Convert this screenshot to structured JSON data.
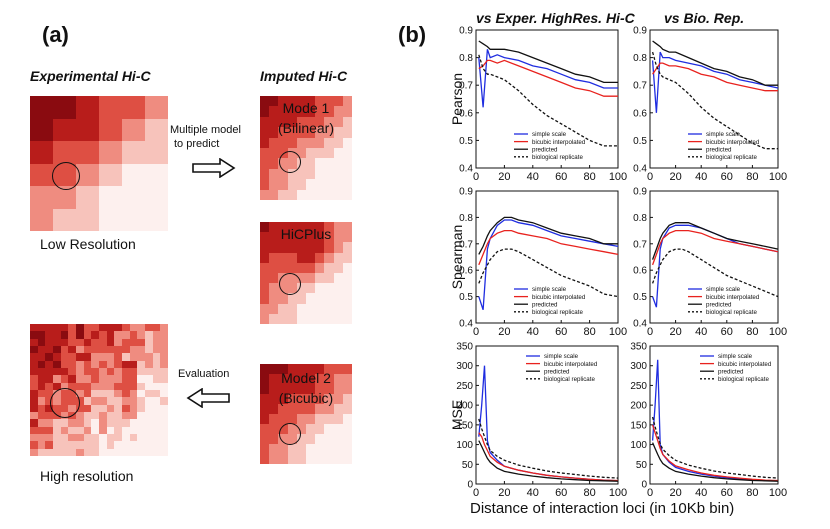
{
  "panel_a": {
    "label": "(a)",
    "experimental_header": "Experimental Hi-C",
    "imputed_header": "Imputed Hi-C",
    "low_res_caption": "Low Resolution",
    "high_res_caption": "High resolution",
    "multi_model_text_1": "Multiple model",
    "multi_model_text_2": "to predict",
    "evaluation_text": "Evaluation",
    "mode1_line1": "Mode 1",
    "mode1_line2": "(Bilinear)",
    "hicplus_label": "HiCPlus",
    "model2_line1": "Model 2",
    "model2_line2": "(Bicubic)",
    "heat_colors": [
      "#fdf0ee",
      "#f7c3bb",
      "#ef8c80",
      "#de4f43",
      "#b81d1b",
      "#8a0b10"
    ]
  },
  "panel_b": {
    "label": "(b)",
    "col1_header": "vs Exper. HighRes. Hi-C",
    "col2_header": "vs Bio. Rep.",
    "x_axis_title": "Distance of interaction loci (in 10Kb bin)",
    "row_titles": [
      "Pearson",
      "Spearman",
      "MSE"
    ],
    "colors": {
      "simple_scale": "#1f2de0",
      "bicubic_interpolated": "#e8221e",
      "predicted": "#111111",
      "biological_replicate": "#111111"
    }
  },
  "chart_data": [
    {
      "type": "line",
      "title": "Pearson vs Exper. HighRes. Hi-C",
      "xlabel": "",
      "ylabel": "Pearson",
      "xlim": [
        0,
        100
      ],
      "ylim": [
        0.4,
        0.9
      ],
      "xticks": [
        "0",
        "20",
        "40",
        "60",
        "80",
        "100"
      ],
      "yticks": [
        "0.4",
        "0.5",
        "0.6",
        "0.7",
        "0.8",
        "0.9"
      ],
      "legend": [
        "simple scale",
        "bicubic interpolated",
        "predicted",
        "biological replicate"
      ],
      "x": [
        2,
        5,
        8,
        10,
        15,
        20,
        30,
        40,
        50,
        60,
        70,
        80,
        90,
        100
      ],
      "series": [
        {
          "name": "simple scale",
          "values": [
            0.8,
            0.62,
            0.83,
            0.8,
            0.81,
            0.8,
            0.79,
            0.77,
            0.76,
            0.74,
            0.72,
            0.71,
            0.69,
            0.69
          ]
        },
        {
          "name": "bicubic interpolated",
          "values": [
            0.76,
            0.77,
            0.79,
            0.79,
            0.78,
            0.79,
            0.77,
            0.75,
            0.73,
            0.71,
            0.69,
            0.68,
            0.66,
            0.66
          ]
        },
        {
          "name": "predicted",
          "values": [
            0.86,
            0.85,
            0.84,
            0.83,
            0.83,
            0.83,
            0.82,
            0.8,
            0.78,
            0.76,
            0.74,
            0.73,
            0.71,
            0.71
          ]
        },
        {
          "name": "biological replicate",
          "values": [
            0.81,
            0.76,
            0.74,
            0.74,
            0.73,
            0.72,
            0.68,
            0.63,
            0.59,
            0.56,
            0.53,
            0.5,
            0.48,
            0.48
          ]
        }
      ]
    },
    {
      "type": "line",
      "title": "Pearson vs Bio. Rep.",
      "xlabel": "",
      "ylabel": "",
      "xlim": [
        0,
        100
      ],
      "ylim": [
        0.4,
        0.9
      ],
      "xticks": [
        "0",
        "20",
        "40",
        "60",
        "80",
        "100"
      ],
      "yticks": [
        "0.4",
        "0.5",
        "0.6",
        "0.7",
        "0.8",
        "0.9"
      ],
      "legend": [
        "simple scale",
        "bicubic interpolated",
        "predicted",
        "biological replicate"
      ],
      "x": [
        2,
        5,
        8,
        10,
        15,
        20,
        30,
        40,
        50,
        60,
        70,
        80,
        90,
        100
      ],
      "series": [
        {
          "name": "simple scale",
          "values": [
            0.79,
            0.6,
            0.82,
            0.8,
            0.8,
            0.79,
            0.78,
            0.77,
            0.75,
            0.74,
            0.72,
            0.71,
            0.7,
            0.69
          ]
        },
        {
          "name": "bicubic interpolated",
          "values": [
            0.74,
            0.76,
            0.78,
            0.78,
            0.77,
            0.77,
            0.76,
            0.74,
            0.73,
            0.71,
            0.7,
            0.69,
            0.68,
            0.68
          ]
        },
        {
          "name": "predicted",
          "values": [
            0.86,
            0.85,
            0.84,
            0.83,
            0.82,
            0.82,
            0.8,
            0.78,
            0.76,
            0.75,
            0.73,
            0.72,
            0.7,
            0.7
          ]
        },
        {
          "name": "biological replicate",
          "values": [
            0.82,
            0.77,
            0.74,
            0.73,
            0.72,
            0.71,
            0.67,
            0.62,
            0.58,
            0.55,
            0.52,
            0.49,
            0.47,
            0.47
          ]
        }
      ]
    },
    {
      "type": "line",
      "title": "Spearman vs Exper. HighRes. Hi-C",
      "xlabel": "",
      "ylabel": "Spearman",
      "xlim": [
        0,
        100
      ],
      "ylim": [
        0.4,
        0.9
      ],
      "xticks": [
        "0",
        "20",
        "40",
        "60",
        "80",
        "100"
      ],
      "yticks": [
        "0.4",
        "0.5",
        "0.6",
        "0.7",
        "0.8",
        "0.9"
      ],
      "legend": [
        "simple scale",
        "bicubic interpolated",
        "predicted",
        "biological replicate"
      ],
      "x": [
        2,
        5,
        8,
        10,
        15,
        20,
        25,
        30,
        40,
        50,
        60,
        70,
        80,
        90,
        100
      ],
      "series": [
        {
          "name": "simple scale",
          "values": [
            0.5,
            0.45,
            0.68,
            0.72,
            0.77,
            0.79,
            0.79,
            0.78,
            0.77,
            0.75,
            0.73,
            0.72,
            0.71,
            0.7,
            0.69
          ]
        },
        {
          "name": "bicubic interpolated",
          "values": [
            0.62,
            0.66,
            0.7,
            0.72,
            0.74,
            0.75,
            0.75,
            0.74,
            0.73,
            0.72,
            0.7,
            0.69,
            0.68,
            0.67,
            0.66
          ]
        },
        {
          "name": "predicted",
          "values": [
            0.66,
            0.69,
            0.73,
            0.75,
            0.78,
            0.8,
            0.8,
            0.79,
            0.78,
            0.76,
            0.74,
            0.73,
            0.72,
            0.7,
            0.7
          ]
        },
        {
          "name": "biological replicate",
          "values": [
            0.55,
            0.59,
            0.62,
            0.64,
            0.67,
            0.68,
            0.68,
            0.67,
            0.64,
            0.61,
            0.58,
            0.56,
            0.54,
            0.51,
            0.5
          ]
        }
      ]
    },
    {
      "type": "line",
      "title": "Spearman vs Bio. Rep.",
      "xlabel": "",
      "ylabel": "",
      "xlim": [
        0,
        100
      ],
      "ylim": [
        0.4,
        0.9
      ],
      "xticks": [
        "0",
        "20",
        "40",
        "60",
        "80",
        "100"
      ],
      "yticks": [
        "0.4",
        "0.5",
        "0.6",
        "0.7",
        "0.8",
        "0.9"
      ],
      "legend": [
        "simple scale",
        "bicubic interpolated",
        "predicted",
        "biological replicate"
      ],
      "x": [
        2,
        5,
        8,
        10,
        15,
        20,
        25,
        30,
        40,
        50,
        60,
        70,
        80,
        90,
        100
      ],
      "series": [
        {
          "name": "simple scale",
          "values": [
            0.5,
            0.46,
            0.68,
            0.72,
            0.76,
            0.77,
            0.77,
            0.77,
            0.76,
            0.74,
            0.72,
            0.7,
            0.69,
            0.68,
            0.67
          ]
        },
        {
          "name": "bicubic interpolated",
          "values": [
            0.62,
            0.66,
            0.7,
            0.72,
            0.74,
            0.75,
            0.75,
            0.75,
            0.74,
            0.72,
            0.71,
            0.7,
            0.69,
            0.68,
            0.67
          ]
        },
        {
          "name": "predicted",
          "values": [
            0.64,
            0.68,
            0.72,
            0.74,
            0.77,
            0.78,
            0.78,
            0.78,
            0.76,
            0.74,
            0.72,
            0.71,
            0.7,
            0.69,
            0.68
          ]
        },
        {
          "name": "biological replicate",
          "values": [
            0.55,
            0.59,
            0.62,
            0.64,
            0.67,
            0.68,
            0.68,
            0.67,
            0.64,
            0.61,
            0.58,
            0.56,
            0.54,
            0.52,
            0.5
          ]
        }
      ]
    },
    {
      "type": "line",
      "title": "MSE vs Exper. HighRes. Hi-C",
      "xlabel": "Distance of interaction loci (in 10Kb bin)",
      "ylabel": "MSE",
      "xlim": [
        0,
        100
      ],
      "ylim": [
        0,
        350
      ],
      "xticks": [
        "0",
        "20",
        "40",
        "60",
        "80",
        "100"
      ],
      "yticks": [
        "0",
        "50",
        "100",
        "150",
        "200",
        "250",
        "300",
        "350"
      ],
      "legend": [
        "simple scale",
        "bicubic interpolated",
        "predicted",
        "biological replicate"
      ],
      "x": [
        2,
        4,
        6,
        8,
        10,
        15,
        20,
        30,
        40,
        50,
        60,
        70,
        80,
        90,
        100
      ],
      "series": [
        {
          "name": "simple scale",
          "values": [
            120,
            200,
            300,
            110,
            80,
            60,
            45,
            35,
            28,
            22,
            18,
            15,
            12,
            10,
            8
          ]
        },
        {
          "name": "bicubic interpolated",
          "values": [
            130,
            120,
            100,
            85,
            70,
            55,
            45,
            35,
            28,
            22,
            18,
            15,
            12,
            10,
            9
          ]
        },
        {
          "name": "predicted",
          "values": [
            110,
            95,
            80,
            65,
            55,
            40,
            32,
            25,
            20,
            16,
            13,
            11,
            9,
            8,
            7
          ]
        },
        {
          "name": "biological replicate",
          "values": [
            165,
            140,
            120,
            100,
            85,
            70,
            60,
            48,
            40,
            33,
            28,
            24,
            20,
            17,
            15
          ]
        }
      ]
    },
    {
      "type": "line",
      "title": "MSE vs Bio. Rep.",
      "xlabel": "Distance of interaction loci (in 10Kb bin)",
      "ylabel": "",
      "xlim": [
        0,
        100
      ],
      "ylim": [
        0,
        350
      ],
      "xticks": [
        "0",
        "20",
        "40",
        "60",
        "80",
        "100"
      ],
      "yticks": [
        "0",
        "50",
        "100",
        "150",
        "200",
        "250",
        "300",
        "350"
      ],
      "legend": [
        "simple scale",
        "bicubic interpolated",
        "predicted",
        "biological replicate"
      ],
      "x": [
        2,
        4,
        6,
        8,
        10,
        15,
        20,
        30,
        40,
        50,
        60,
        70,
        80,
        90,
        100
      ],
      "series": [
        {
          "name": "simple scale",
          "values": [
            110,
            200,
            315,
            100,
            75,
            55,
            42,
            32,
            25,
            20,
            16,
            13,
            11,
            9,
            8
          ]
        },
        {
          "name": "bicubic interpolated",
          "values": [
            150,
            130,
            110,
            90,
            75,
            58,
            46,
            36,
            28,
            22,
            18,
            15,
            12,
            10,
            9
          ]
        },
        {
          "name": "predicted",
          "values": [
            105,
            90,
            75,
            62,
            52,
            40,
            32,
            25,
            20,
            16,
            13,
            11,
            9,
            8,
            7
          ]
        },
        {
          "name": "biological replicate",
          "values": [
            170,
            145,
            122,
            102,
            88,
            72,
            60,
            48,
            40,
            33,
            28,
            24,
            20,
            17,
            15
          ]
        }
      ]
    }
  ]
}
